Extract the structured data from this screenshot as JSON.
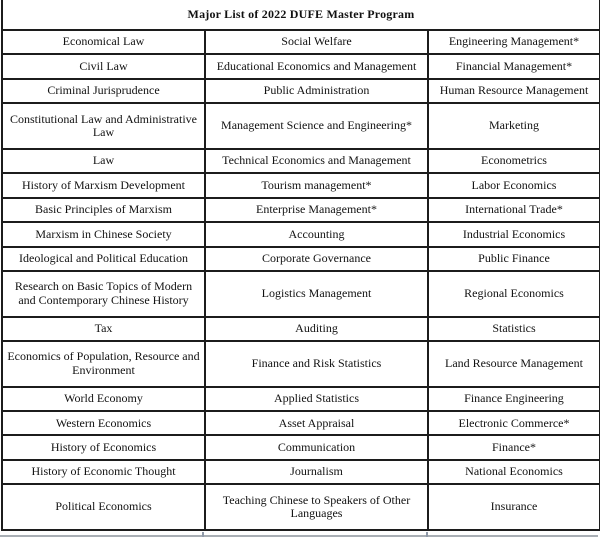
{
  "page_title": "Major List of 2022 DUFE Master Program",
  "colors": {
    "highlight_red": "#ff0000",
    "text": "#111111",
    "border": "#1c1c1c"
  },
  "table": {
    "columns": 3,
    "rows": [
      [
        {
          "text": "Economical Law",
          "red": false
        },
        {
          "text": "Social Welfare",
          "red": false
        },
        {
          "text": "Engineering Management*",
          "red": true
        }
      ],
      [
        {
          "text": "Civil Law",
          "red": false
        },
        {
          "text": "Educational Economics and Management",
          "red": false
        },
        {
          "text": "Financial Management*",
          "red": true
        }
      ],
      [
        {
          "text": "Criminal Jurisprudence",
          "red": false
        },
        {
          "text": "Public Administration",
          "red": false
        },
        {
          "text": "Human Resource Management",
          "red": false
        }
      ],
      [
        {
          "text": "Constitutional Law and Administrative Law",
          "red": false
        },
        {
          "text": "Management Science and Engineering*",
          "red": true
        },
        {
          "text": "Marketing",
          "red": false
        }
      ],
      [
        {
          "text": "Law",
          "red": false
        },
        {
          "text": "Technical Economics and Management",
          "red": false
        },
        {
          "text": "Econometrics",
          "red": false
        }
      ],
      [
        {
          "text": "History of Marxism Development",
          "red": false
        },
        {
          "text": "Tourism management*",
          "red": true
        },
        {
          "text": "Labor Economics",
          "red": false
        }
      ],
      [
        {
          "text": "Basic Principles of Marxism",
          "red": false
        },
        {
          "text": "Enterprise Management*",
          "red": true
        },
        {
          "text": "International Trade*",
          "red": true
        }
      ],
      [
        {
          "text": "Marxism in Chinese Society",
          "red": false
        },
        {
          "text": "Accounting",
          "red": false
        },
        {
          "text": "Industrial Economics",
          "red": false
        }
      ],
      [
        {
          "text": "Ideological and Political Education",
          "red": false
        },
        {
          "text": "Corporate Governance",
          "red": false
        },
        {
          "text": "Public Finance",
          "red": false
        }
      ],
      [
        {
          "text": "Research on Basic Topics of Modern and Contemporary Chinese History",
          "red": false
        },
        {
          "text": "Logistics Management",
          "red": false
        },
        {
          "text": "Regional Economics",
          "red": false
        }
      ],
      [
        {
          "text": "Tax",
          "red": false
        },
        {
          "text": "Auditing",
          "red": false
        },
        {
          "text": "Statistics",
          "red": false
        }
      ],
      [
        {
          "text": "Economics of Population, Resource and Environment",
          "red": false
        },
        {
          "text": "Finance and Risk Statistics",
          "red": false
        },
        {
          "text": "Land Resource Management",
          "red": false
        }
      ],
      [
        {
          "text": "World Economy",
          "red": false
        },
        {
          "text": "Applied Statistics",
          "red": false
        },
        {
          "text": "Finance Engineering",
          "red": false
        }
      ],
      [
        {
          "text": "Western Economics",
          "red": false
        },
        {
          "text": "Asset Appraisal",
          "red": false
        },
        {
          "text": "Electronic Commerce*",
          "red": true
        }
      ],
      [
        {
          "text": "History of Economics",
          "red": false
        },
        {
          "text": "Communication",
          "red": false
        },
        {
          "text": "Finance*",
          "red": true
        }
      ],
      [
        {
          "text": "History of Economic Thought",
          "red": false
        },
        {
          "text": "Journalism",
          "red": false
        },
        {
          "text": "National Economics",
          "red": false
        }
      ],
      [
        {
          "text": "Political Economics",
          "red": false
        },
        {
          "text": "Teaching Chinese to Speakers of Other Languages",
          "red": false
        },
        {
          "text": "Insurance",
          "red": false
        }
      ]
    ]
  }
}
